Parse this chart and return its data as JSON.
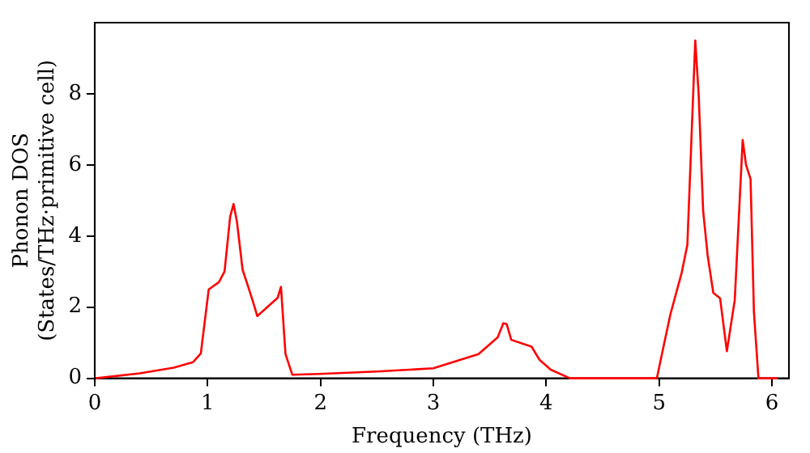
{
  "chart_data": {
    "type": "line",
    "xlabel": "Frequency (THz)",
    "ylabel": "Phonon DOS\n(States/THz·primitive cell)",
    "xlim": [
      0,
      6.15
    ],
    "xticks": [
      0,
      1,
      2,
      3,
      4,
      5,
      6
    ],
    "ylim": [
      0,
      10
    ],
    "yticks": [
      0,
      2,
      4,
      6,
      8
    ],
    "grid": false,
    "legend": false,
    "marker": "none",
    "line_style": "solid",
    "series": [
      {
        "color": "#ff0000",
        "x": [
          0.01,
          0.4,
          0.7,
          0.87,
          0.94,
          1.01,
          1.1,
          1.15,
          1.2,
          1.23,
          1.26,
          1.31,
          1.36,
          1.4,
          1.44,
          1.62,
          1.65,
          1.69,
          1.75,
          1.99,
          2.5,
          3.0,
          3.4,
          3.57,
          3.62,
          3.65,
          3.69,
          3.87,
          3.94,
          4.04,
          4.21,
          4.96,
          4.98,
          5.03,
          5.1,
          5.2,
          5.25,
          5.32,
          5.35,
          5.39,
          5.43,
          5.48,
          5.54,
          5.6,
          5.67,
          5.74,
          5.77,
          5.81,
          5.84,
          5.88,
          6.05
        ],
        "values": [
          0,
          0.14,
          0.3,
          0.45,
          0.7,
          2.5,
          2.7,
          3.0,
          4.55,
          4.9,
          4.4,
          3.05,
          2.57,
          2.17,
          1.75,
          2.26,
          2.57,
          0.68,
          0.1,
          0.12,
          0.19,
          0.28,
          0.68,
          1.15,
          1.55,
          1.52,
          1.08,
          0.89,
          0.52,
          0.24,
          0,
          0,
          0,
          0.76,
          1.8,
          2.97,
          3.75,
          9.5,
          8.0,
          4.7,
          3.45,
          2.4,
          2.25,
          0.76,
          2.2,
          6.7,
          6.0,
          5.6,
          1.85,
          0,
          0
        ]
      }
    ]
  }
}
